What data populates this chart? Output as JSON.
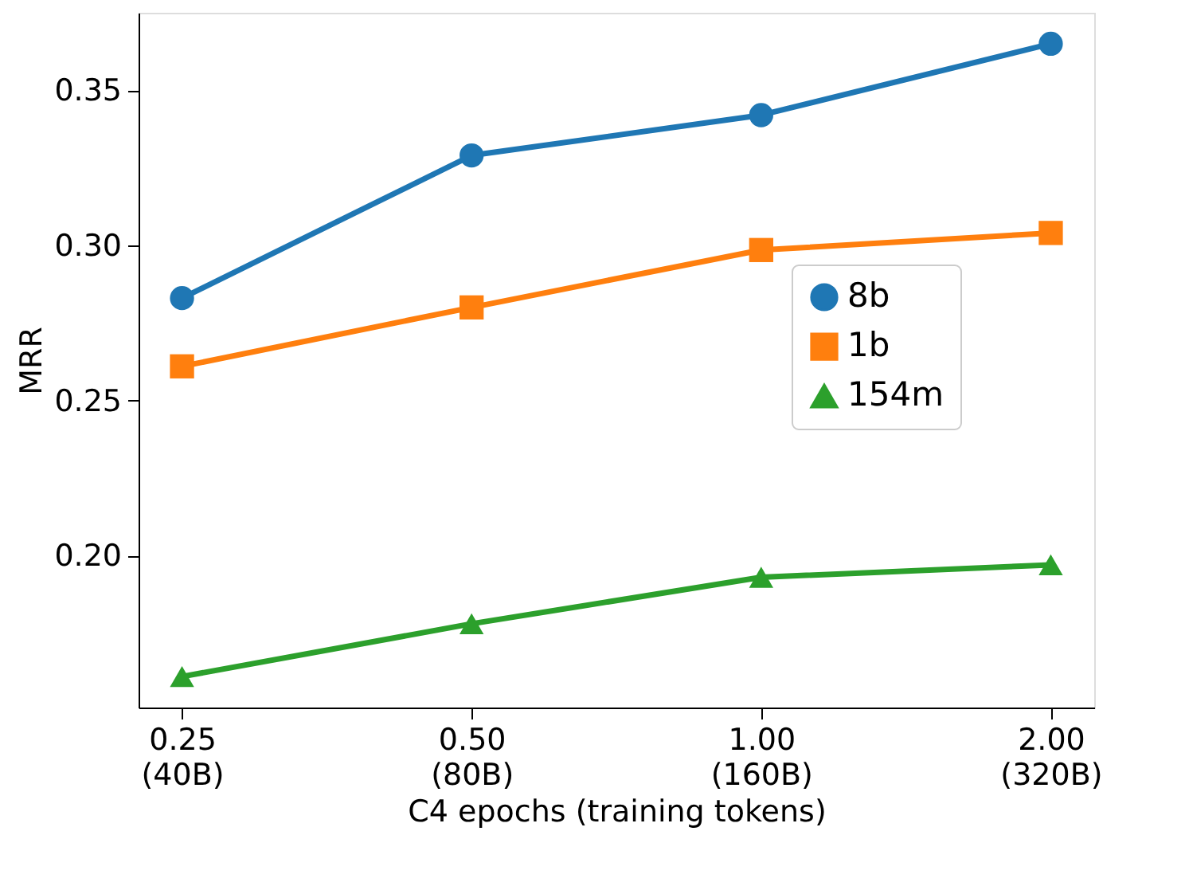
{
  "chart_data": {
    "type": "line",
    "xlabel": "C4 epochs (training tokens)",
    "ylabel": "MRR",
    "categories": [
      "0.25\n(40B)",
      "0.50\n(80B)",
      "1.00\n(160B)",
      "2.00\n(320B)"
    ],
    "ylim": [
      0.151,
      0.375
    ],
    "yticks": [
      {
        "value": 0.2,
        "label": "0.20"
      },
      {
        "value": 0.25,
        "label": "0.25"
      },
      {
        "value": 0.3,
        "label": "0.30"
      },
      {
        "value": 0.35,
        "label": "0.35"
      }
    ],
    "grid": false,
    "legend": "right",
    "line_style": "solid",
    "series": [
      {
        "name": "8b",
        "color": "#1f77b4",
        "marker": "circle",
        "values": [
          0.283,
          0.329,
          0.342,
          0.365
        ]
      },
      {
        "name": "1b",
        "color": "#ff7f0e",
        "marker": "square",
        "values": [
          0.261,
          0.28,
          0.2985,
          0.304
        ]
      },
      {
        "name": "154m",
        "color": "#2ca02c",
        "marker": "triangle",
        "values": [
          0.161,
          0.178,
          0.193,
          0.197
        ]
      }
    ]
  }
}
